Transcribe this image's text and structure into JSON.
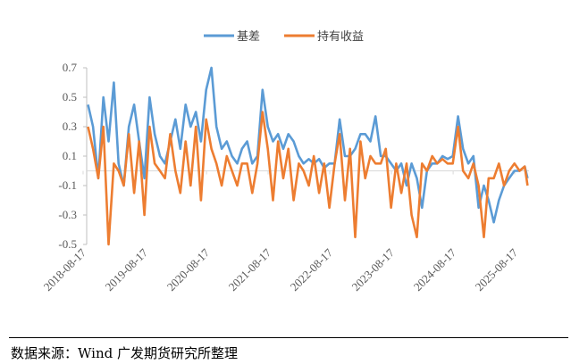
{
  "chart_data": {
    "type": "line",
    "title": "",
    "xlabel": "",
    "ylabel": "",
    "ylim": [
      -0.5,
      0.7
    ],
    "yticks": [
      "0.7",
      "0.5",
      "0.3",
      "0.1",
      "-0.1",
      "-0.3",
      "-0.5"
    ],
    "xticks": [
      "2018-08-17",
      "2019-08-17",
      "2020-08-17",
      "2021-08-17",
      "2022-08-17",
      "2023-08-17",
      "2024-08-17",
      "2025-08-17"
    ],
    "grid": false,
    "legend_position": "top",
    "x": [
      "2018-09-15",
      "2018-10-15",
      "2018-11-15",
      "2018-12-15",
      "2019-01-15",
      "2019-02-15",
      "2019-03-15",
      "2019-04-15",
      "2019-05-15",
      "2019-06-15",
      "2019-07-15",
      "2019-08-15",
      "2019-09-15",
      "2019-10-15",
      "2019-11-15",
      "2019-12-15",
      "2020-01-15",
      "2020-02-15",
      "2020-03-15",
      "2020-04-15",
      "2020-05-15",
      "2020-06-15",
      "2020-07-15",
      "2020-08-15",
      "2020-09-15",
      "2020-10-15",
      "2020-11-15",
      "2020-12-15",
      "2021-01-15",
      "2021-02-15",
      "2021-03-15",
      "2021-04-15",
      "2021-05-15",
      "2021-06-15",
      "2021-07-15",
      "2021-08-15",
      "2021-09-15",
      "2021-10-15",
      "2021-11-15",
      "2021-12-15",
      "2022-01-15",
      "2022-02-15",
      "2022-03-15",
      "2022-04-15",
      "2022-05-15",
      "2022-06-15",
      "2022-07-15",
      "2022-08-15",
      "2022-09-15",
      "2022-10-15",
      "2022-11-15",
      "2022-12-15",
      "2023-01-15",
      "2023-02-15",
      "2023-03-15",
      "2023-04-15",
      "2023-05-15",
      "2023-06-15",
      "2023-07-15",
      "2023-08-15",
      "2023-09-15",
      "2023-10-15",
      "2023-11-15",
      "2023-12-15",
      "2024-01-15",
      "2024-02-15",
      "2024-03-15",
      "2024-04-15",
      "2024-05-15",
      "2024-06-15",
      "2024-07-15",
      "2024-08-15",
      "2024-09-15",
      "2024-10-15",
      "2024-11-15",
      "2024-12-15",
      "2025-01-15",
      "2025-02-15",
      "2025-03-15",
      "2025-04-15",
      "2025-05-15",
      "2025-06-15",
      "2025-07-15",
      "2025-08-15",
      "2025-09-15",
      "2025-10-15",
      "2025-11-01"
    ],
    "series": [
      {
        "name": "基差",
        "color": "#5B9BD5",
        "values": [
          0.45,
          0.3,
          -0.05,
          0.5,
          0.2,
          0.6,
          0.05,
          -0.1,
          0.3,
          0.45,
          0.2,
          -0.05,
          0.5,
          0.25,
          0.1,
          0.05,
          0.2,
          0.35,
          0.15,
          0.45,
          0.3,
          0.4,
          0.2,
          0.55,
          0.7,
          0.3,
          0.15,
          0.2,
          0.1,
          0.05,
          0.15,
          0.2,
          0.05,
          0.1,
          0.55,
          0.3,
          0.2,
          0.25,
          0.15,
          0.25,
          0.2,
          0.1,
          0.05,
          0.08,
          0.05,
          0.08,
          0.02,
          0.05,
          0.05,
          0.35,
          0.1,
          0.1,
          0.15,
          0.25,
          0.25,
          0.2,
          0.37,
          0.1,
          0.1,
          0.05,
          0.0,
          0.05,
          -0.1,
          0.05,
          -0.05,
          -0.25,
          0.0,
          0.05,
          0.05,
          0.1,
          0.08,
          0.1,
          0.37,
          0.15,
          0.05,
          0.1,
          -0.25,
          -0.1,
          -0.2,
          -0.35,
          -0.2,
          -0.1,
          -0.05,
          0.0,
          0.0,
          0.03,
          -0.05
        ]
      },
      {
        "name": "持有收益",
        "color": "#ED7D31",
        "values": [
          0.3,
          0.15,
          -0.05,
          0.3,
          -0.5,
          0.05,
          0.0,
          -0.1,
          0.25,
          -0.15,
          0.2,
          -0.3,
          0.3,
          0.05,
          0.0,
          -0.05,
          0.25,
          0.0,
          -0.15,
          0.2,
          -0.1,
          0.3,
          -0.2,
          0.35,
          0.15,
          0.05,
          -0.1,
          0.1,
          0.0,
          -0.1,
          0.05,
          0.05,
          -0.15,
          0.05,
          0.4,
          0.15,
          -0.2,
          0.2,
          -0.05,
          0.15,
          -0.2,
          0.05,
          0.0,
          -0.1,
          0.1,
          -0.15,
          0.05,
          -0.25,
          0.05,
          0.25,
          -0.2,
          0.15,
          -0.45,
          0.2,
          -0.05,
          0.1,
          0.05,
          0.05,
          0.15,
          -0.25,
          0.05,
          -0.15,
          0.05,
          -0.3,
          -0.45,
          0.05,
          0.0,
          0.1,
          0.05,
          0.08,
          0.05,
          0.05,
          0.3,
          0.0,
          -0.05,
          0.05,
          -0.1,
          -0.45,
          -0.05,
          -0.05,
          0.05,
          -0.1,
          0.0,
          0.05,
          0.0,
          0.03,
          -0.1
        ]
      }
    ]
  },
  "footer": {
    "source": "数据来源：Wind  广发期货研究所整理"
  }
}
